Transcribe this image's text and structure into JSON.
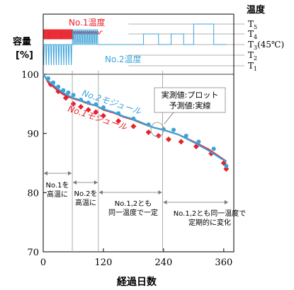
{
  "chart_data": {
    "type": "line",
    "xlabel": "経過日数",
    "ylabel_line1": "容量",
    "ylabel_line2": "[%]",
    "xlim": [
      0,
      380
    ],
    "ylim": [
      70,
      104
    ],
    "x_ticks": [
      0,
      120,
      240,
      360
    ],
    "y_ticks": [
      70,
      80,
      90,
      100
    ],
    "grid": false,
    "temperature": {
      "title": "温度",
      "levels": [
        {
          "base": "T",
          "sub": "5",
          "suffix": ""
        },
        {
          "base": "T",
          "sub": "4",
          "suffix": ""
        },
        {
          "base": "T",
          "sub": "3",
          "suffix": "(45℃)"
        },
        {
          "base": "T",
          "sub": "2",
          "suffix": ""
        },
        {
          "base": "T",
          "sub": "1",
          "suffix": ""
        }
      ],
      "series_labels": {
        "no1": "No.1温度",
        "no2": "No.2温度"
      }
    },
    "series": [
      {
        "name": "No.1モジュール",
        "color": "#e8202a",
        "measured_marker": "diamond",
        "predicted": {
          "x": [
            0,
            5,
            10,
            20,
            30,
            40,
            50,
            60,
            75,
            90,
            105,
            120,
            140,
            160,
            180,
            200,
            220,
            240,
            270,
            300,
            330,
            365
          ],
          "y": [
            100,
            99.4,
            98.6,
            97.9,
            97.2,
            96.6,
            96.2,
            95.9,
            95.5,
            95.0,
            94.7,
            94.0,
            93.5,
            92.8,
            92.3,
            91.6,
            91.0,
            90.6,
            89.8,
            88.6,
            87.3,
            85.3
          ]
        },
        "measured": {
          "x": [
            15,
            30,
            45,
            60,
            75,
            90,
            105,
            120,
            150,
            180,
            210,
            230,
            250,
            275,
            305,
            335,
            360,
            365
          ],
          "y": [
            98.3,
            97.1,
            96.0,
            95.0,
            94.5,
            94.0,
            93.6,
            93.0,
            92.1,
            91.2,
            90.2,
            89.6,
            89.0,
            88.6,
            87.8,
            86.6,
            85.0,
            84.0
          ]
        }
      },
      {
        "name": "No.2モジュール",
        "color": "#3ba3d9",
        "measured_marker": "circle",
        "predicted": {
          "x": [
            0,
            5,
            10,
            20,
            30,
            40,
            50,
            60,
            75,
            90,
            105,
            120,
            140,
            160,
            180,
            200,
            220,
            240,
            270,
            300,
            330,
            365
          ],
          "y": [
            100,
            99.4,
            98.9,
            98.2,
            97.5,
            96.9,
            96.4,
            96.0,
            95.6,
            95.1,
            94.7,
            94.1,
            93.6,
            92.9,
            92.4,
            91.7,
            91.0,
            90.6,
            89.8,
            88.5,
            87.1,
            85.2
          ]
        },
        "measured": {
          "x": [
            10,
            20,
            30,
            40,
            50,
            60,
            75,
            90,
            105,
            120,
            150,
            180,
            210,
            240,
            260,
            285,
            310,
            340,
            365
          ],
          "y": [
            99.3,
            98.6,
            97.9,
            97.3,
            96.9,
            96.5,
            95.7,
            95.2,
            94.9,
            94.4,
            93.4,
            92.5,
            91.5,
            90.7,
            90.6,
            89.6,
            88.6,
            87.4,
            84.5
          ]
        }
      }
    ],
    "annotations": {
      "legend_measured": "実測値:プロット",
      "legend_predicted": "予測値:実線",
      "phase1": [
        "No.1を",
        "高温に"
      ],
      "phase2": [
        "No.2を",
        "高温に"
      ],
      "phase3": [
        "No.1,2とも",
        "同一温度で一定"
      ],
      "phase4": [
        "No.1,2とも同一温度で",
        "定期的に変化"
      ],
      "phase_boundaries": [
        0,
        58,
        110,
        238,
        370
      ]
    }
  }
}
